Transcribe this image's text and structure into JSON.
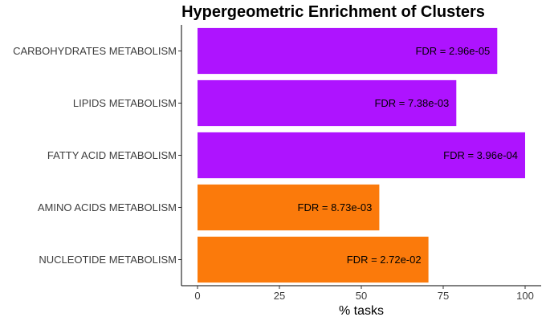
{
  "chart_data": {
    "type": "bar",
    "orientation": "horizontal",
    "title": "Hypergeometric Enrichment of Clusters",
    "xlabel": "% tasks",
    "ylabel": "",
    "xlim": [
      0,
      105
    ],
    "xticks": [
      0,
      25,
      50,
      75,
      100
    ],
    "grid": false,
    "legend": "none",
    "categories": [
      "CARBOHYDRATES METABOLISM",
      "LIPIDS METABOLISM",
      "FATTY ACID METABOLISM",
      "AMINO ACIDS METABOLISM",
      "NUCLEOTIDE METABOLISM"
    ],
    "values": [
      91.5,
      79,
      100,
      55.5,
      70.5
    ],
    "labels": [
      "FDR = 2.96e-05",
      "FDR = 7.38e-03",
      "FDR = 3.96e-04",
      "FDR = 8.73e-03",
      "FDR = 2.72e-02"
    ],
    "colors": [
      "#AE13FF",
      "#AE13FF",
      "#AE13FF",
      "#FB7A0B",
      "#FB7A0B"
    ]
  }
}
